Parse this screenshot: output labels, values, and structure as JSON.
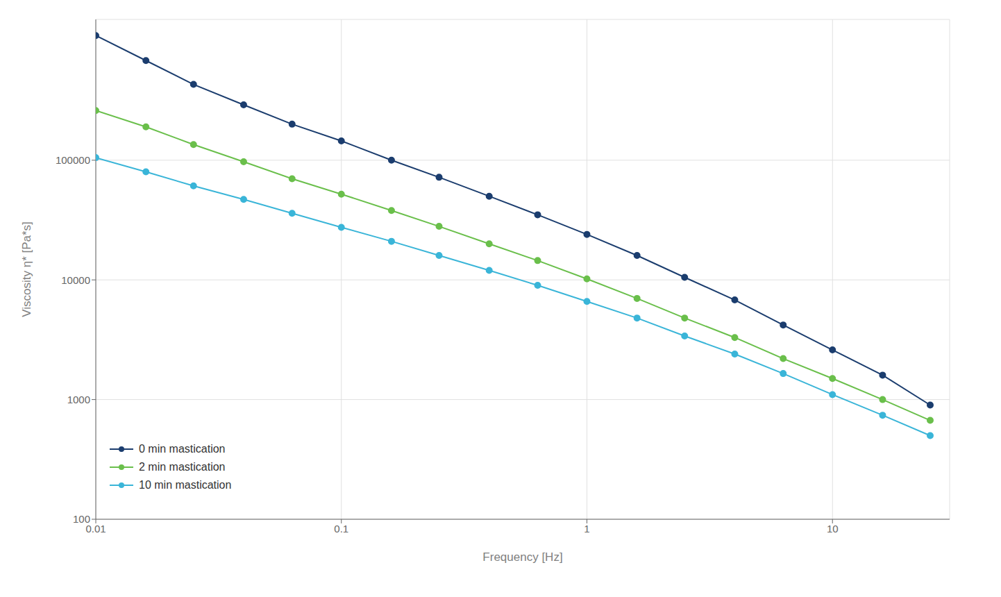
{
  "chart_data": {
    "type": "line",
    "xlabel": "Frequency [Hz]",
    "ylabel": "Viscosity η* [Pa*s]",
    "x": [
      0.01,
      0.016,
      0.025,
      0.04,
      0.063,
      0.1,
      0.16,
      0.25,
      0.4,
      0.63,
      1.0,
      1.6,
      2.5,
      4.0,
      6.3,
      10.0,
      16.0,
      25.0
    ],
    "series": [
      {
        "name": "0 min mastication",
        "color": "#1b3d6e",
        "values": [
          1100000,
          680000,
          430000,
          290000,
          200000,
          145000,
          100000,
          72000,
          50000,
          35000,
          24000,
          16000,
          10500,
          6800,
          4200,
          2600,
          1600,
          900
        ]
      },
      {
        "name": "2 min mastication",
        "color": "#6abf4b",
        "values": [
          260000,
          190000,
          135000,
          97000,
          70000,
          52000,
          38000,
          28000,
          20000,
          14500,
          10200,
          7000,
          4800,
          3300,
          2200,
          1500,
          1000,
          670
        ]
      },
      {
        "name": "10 min mastication",
        "color": "#3ab5d8",
        "values": [
          105000,
          80000,
          61000,
          47000,
          36000,
          27500,
          21000,
          16000,
          12000,
          9000,
          6600,
          4800,
          3400,
          2400,
          1650,
          1100,
          740,
          500
        ]
      }
    ],
    "xlim": [
      0.01,
      30
    ],
    "ylim": [
      100,
      1500000
    ],
    "xticks": [
      0.01,
      0.1,
      1,
      10
    ],
    "yticks": [
      100,
      1000,
      10000,
      100000
    ],
    "log": true,
    "grid": true,
    "legend": "lower left",
    "marker": "circle"
  }
}
